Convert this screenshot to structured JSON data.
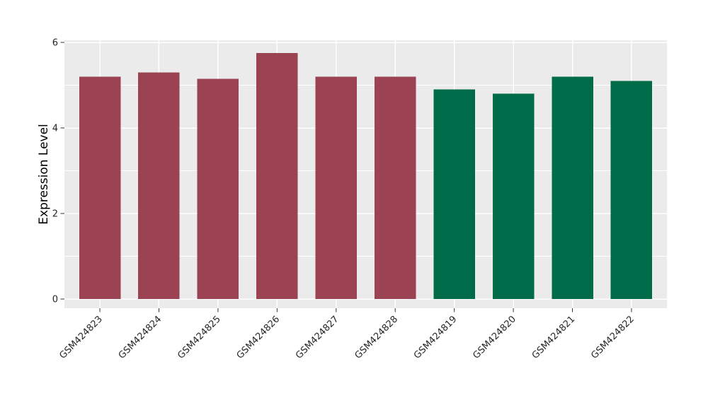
{
  "figure": {
    "background": "#ffffff"
  },
  "chart_data": {
    "type": "bar",
    "title": "",
    "xlabel": "",
    "ylabel": "Expression Level",
    "categories": [
      "GSM424823",
      "GSM424824",
      "GSM424825",
      "GSM424826",
      "GSM424827",
      "GSM424828",
      "GSM424819",
      "GSM424820",
      "GSM424821",
      "GSM424822"
    ],
    "values": [
      5.2,
      5.3,
      5.15,
      5.75,
      5.2,
      5.2,
      4.9,
      4.8,
      5.2,
      5.1
    ],
    "bar_colors": [
      "#9b4352",
      "#9b4352",
      "#9b4352",
      "#9b4352",
      "#9b4352",
      "#9b4352",
      "#006b48",
      "#006b48",
      "#006b48",
      "#006b48"
    ],
    "groups": [
      {
        "name": "group-red",
        "color": "#9b4352",
        "categories": [
          "GSM424823",
          "GSM424824",
          "GSM424825",
          "GSM424826",
          "GSM424827",
          "GSM424828"
        ]
      },
      {
        "name": "group-green",
        "color": "#006b48",
        "categories": [
          "GSM424819",
          "GSM424820",
          "GSM424821",
          "GSM424822"
        ]
      }
    ],
    "ylim": [
      0,
      6.3
    ],
    "yticks_major": [
      0,
      2,
      4,
      6
    ],
    "yticks_minor": [
      1,
      3,
      5
    ],
    "grid": true,
    "legend": "none",
    "x_tick_rotation": 45,
    "panel_background": "#ebebeb",
    "grid_color": "#ffffff",
    "tick_color": "#333333",
    "tick_label_color": "#262626",
    "axis_label_color": "#000000"
  }
}
